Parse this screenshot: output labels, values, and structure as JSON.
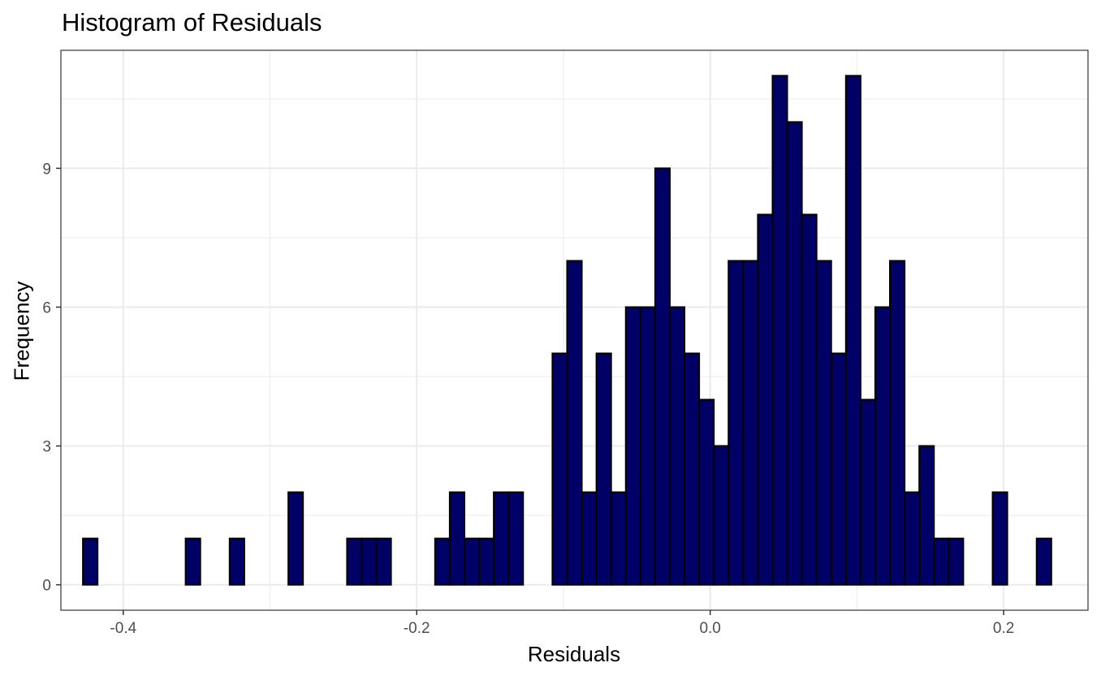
{
  "chart_data": {
    "type": "bar",
    "title": "Histogram of Residuals",
    "xlabel": "Residuals",
    "ylabel": "Frequency",
    "xlim": [
      -0.4425,
      0.2575
    ],
    "ylim": [
      -0.55,
      11.55
    ],
    "x_ticks": [
      -0.4,
      -0.2,
      0.0,
      0.2
    ],
    "x_tick_labels": [
      "-0.4",
      "-0.2",
      "0.0",
      "0.2"
    ],
    "y_ticks": [
      0,
      3,
      6,
      9
    ],
    "y_tick_labels": [
      "0",
      "3",
      "6",
      "9"
    ],
    "grid": true,
    "bin_width": 0.01,
    "bin_start": -0.4275,
    "values": [
      1,
      0,
      0,
      0,
      0,
      0,
      0,
      1,
      0,
      0,
      1,
      0,
      0,
      0,
      2,
      0,
      0,
      0,
      1,
      1,
      1,
      0,
      0,
      0,
      1,
      2,
      1,
      1,
      2,
      2,
      0,
      0,
      5,
      7,
      2,
      5,
      2,
      6,
      6,
      9,
      6,
      5,
      4,
      3,
      7,
      7,
      8,
      11,
      10,
      8,
      7,
      5,
      11,
      4,
      6,
      7,
      2,
      3,
      1,
      1,
      0,
      0,
      2,
      0,
      0,
      1
    ],
    "bar_fill": "#000066",
    "bar_outline": "#000000"
  }
}
